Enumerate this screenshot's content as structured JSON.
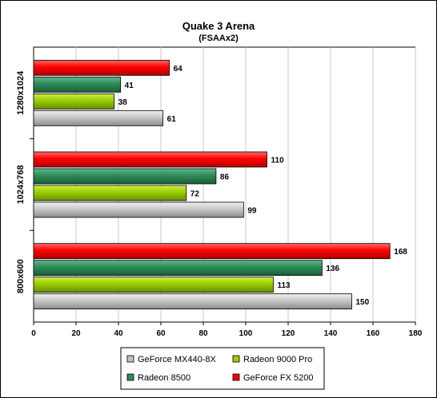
{
  "chart_data": {
    "type": "bar",
    "orientation": "horizontal",
    "title": "Quake 3 Arena",
    "subtitle": "(FSAAx2)",
    "xlabel": "",
    "ylabel": "",
    "xlim": [
      0,
      180
    ],
    "x_ticks": [
      0,
      20,
      40,
      60,
      80,
      100,
      120,
      140,
      160,
      180
    ],
    "grid": "vertical",
    "categories": [
      "1280x1024",
      "1024x768",
      "800x600"
    ],
    "series": [
      {
        "name": "GeForce FX 5200",
        "color": "#ff0000",
        "values": [
          64,
          110,
          168
        ]
      },
      {
        "name": "Radeon 8500",
        "color": "#2e8b57",
        "values": [
          41,
          86,
          136
        ]
      },
      {
        "name": "Radeon 9000 Pro",
        "color": "#9acd00",
        "values": [
          38,
          72,
          113
        ]
      },
      {
        "name": "GeForce MX440-8X",
        "color": "#c0c0c0",
        "values": [
          61,
          99,
          150
        ]
      }
    ],
    "legend": {
      "placement": "bottom",
      "rows": [
        [
          "GeForce MX440-8X",
          "Radeon 9000 Pro"
        ],
        [
          "Radeon 8500",
          "GeForce FX 5200"
        ]
      ]
    }
  }
}
